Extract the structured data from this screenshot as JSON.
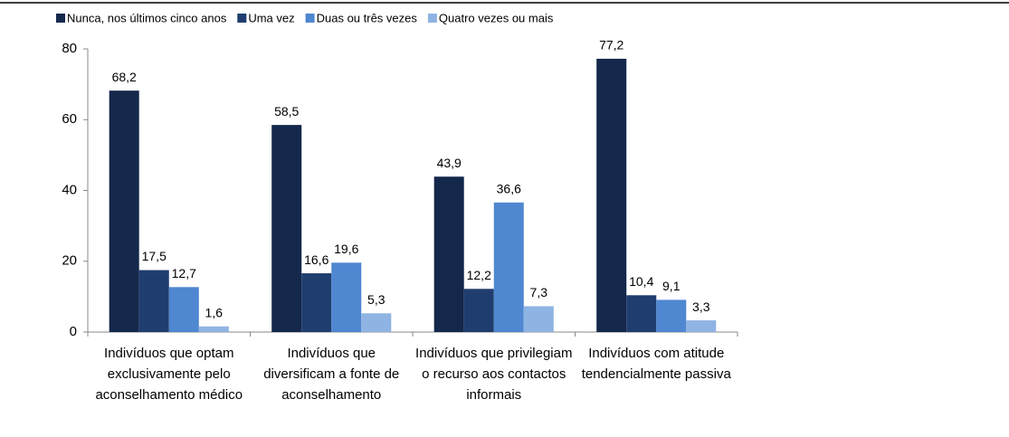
{
  "chart_data": {
    "type": "bar",
    "categories": [
      "Indivíduos que optam exclusivamente pelo aconselhamento médico",
      "Indivíduos que diversificam a fonte de aconselhamento",
      "Indivíduos que privilegiam o recurso aos contactos informais",
      "Indivíduos com atitude tendencialmente passiva"
    ],
    "series": [
      {
        "name": "Nunca, nos últimos cinco anos",
        "color": "#14284b",
        "values": [
          68.2,
          58.5,
          43.9,
          77.2
        ],
        "value_labels": [
          "68,2",
          "58,5",
          "43,9",
          "77,2"
        ]
      },
      {
        "name": "Uma vez",
        "color": "#1f3d6e",
        "values": [
          17.5,
          16.6,
          12.2,
          10.4
        ],
        "value_labels": [
          "17,5",
          "16,6",
          "12,2",
          "10,4"
        ]
      },
      {
        "name": "Duas ou três vezes",
        "color": "#4f87d0",
        "values": [
          12.7,
          19.6,
          36.6,
          9.1
        ],
        "value_labels": [
          "12,7",
          "19,6",
          "36,6",
          "9,1"
        ]
      },
      {
        "name": "Quatro vezes ou mais",
        "color": "#8fb4e3",
        "values": [
          1.6,
          5.3,
          7.3,
          3.3
        ],
        "value_labels": [
          "1,6",
          "5,3",
          "7,3",
          "3,3"
        ]
      }
    ],
    "ylim": [
      0,
      80
    ],
    "yticks": [
      0,
      20,
      40,
      60,
      80
    ],
    "grid": false,
    "legend": "top"
  }
}
